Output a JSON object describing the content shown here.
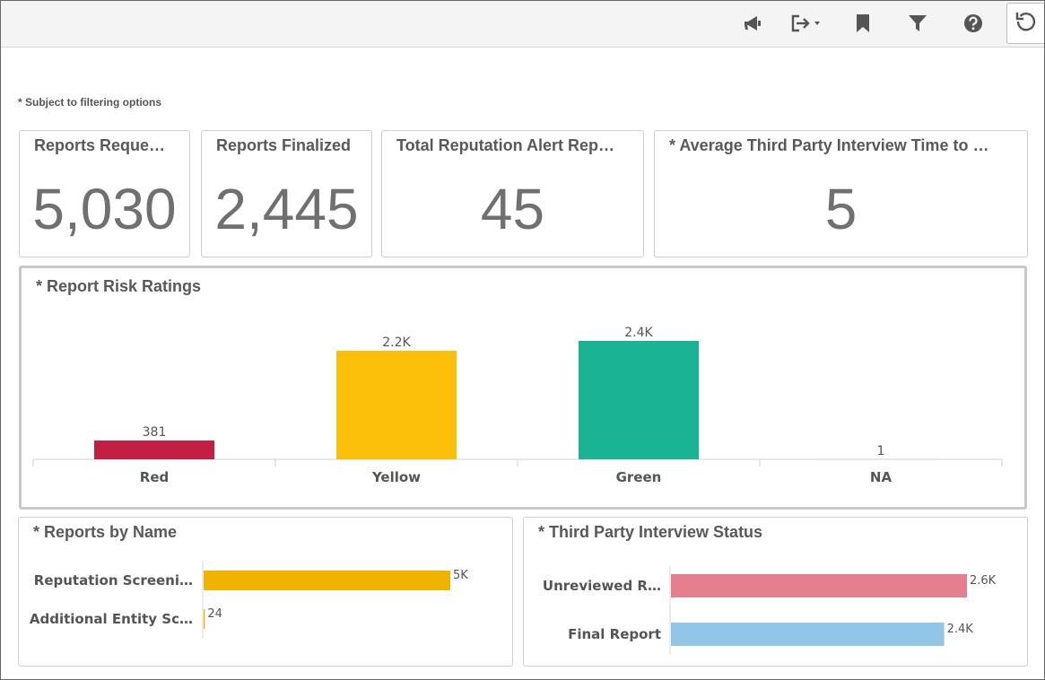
{
  "toolbar": {
    "icons": [
      "megaphone-icon",
      "export-icon",
      "bookmark-icon",
      "filter-icon",
      "help-icon",
      "refresh-icon"
    ]
  },
  "note": "* Subject to filtering options",
  "kpis": [
    {
      "title": "Reports Reque…",
      "value": "5,030"
    },
    {
      "title": "Reports Finalized",
      "value": "2,445"
    },
    {
      "title": "Total Reputation Alert Rep…",
      "value": "45"
    },
    {
      "title": "* Average Third Party Interview Time to …",
      "value": "5"
    }
  ],
  "risk": {
    "title": "* Report Risk Ratings",
    "chart_data": {
      "type": "bar",
      "categories": [
        "Red",
        "Yellow",
        "Green",
        "NA"
      ],
      "values": [
        381,
        2200,
        2400,
        1
      ],
      "data_labels": [
        "381",
        "2.2K",
        "2.4K",
        "1"
      ],
      "colors": [
        "#c41e45",
        "#fcbf0a",
        "#1ab394",
        "#999999"
      ],
      "ylim": [
        0,
        2400
      ]
    }
  },
  "byname": {
    "title": "* Reports by Name",
    "chart_data": {
      "type": "bar",
      "orientation": "horizontal",
      "categories": [
        "Reputation Screeni…",
        "Additional Entity Sc…"
      ],
      "values": [
        5000,
        24
      ],
      "data_labels": [
        "5K",
        "24"
      ],
      "colors": [
        "#f0b400",
        "#f0b400"
      ],
      "xlim": [
        0,
        5000
      ]
    }
  },
  "interview": {
    "title": "* Third Party Interview Status",
    "chart_data": {
      "type": "bar",
      "orientation": "horizontal",
      "categories": [
        "Unreviewed R…",
        "Final Report"
      ],
      "values": [
        2600,
        2400
      ],
      "data_labels": [
        "2.6K",
        "2.4K"
      ],
      "colors": [
        "#e57f8d",
        "#93c5e6"
      ],
      "xlim": [
        0,
        2600
      ]
    }
  }
}
